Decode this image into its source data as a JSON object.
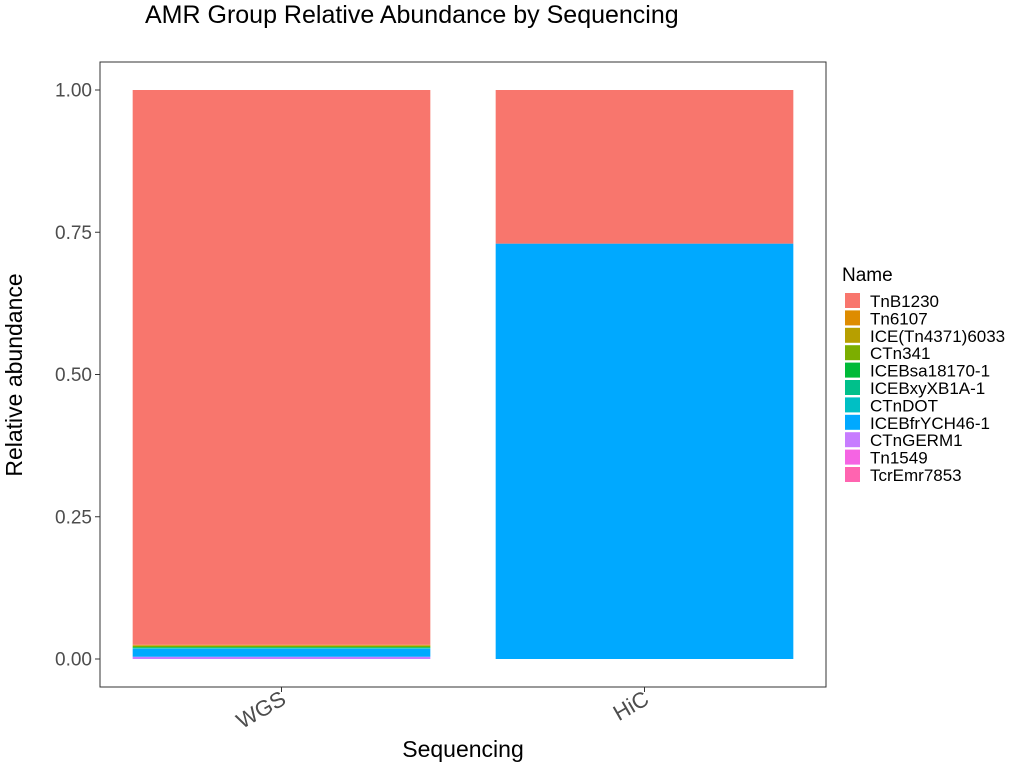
{
  "chart_data": {
    "type": "bar",
    "stacked": true,
    "title": "AMR Group Relative Abundance by Sequencing",
    "xlabel": "Sequencing",
    "ylabel": "Relative abundance",
    "categories": [
      "WGS",
      "HiC"
    ],
    "ylim": [
      0,
      1
    ],
    "yticks": [
      "0.00",
      "0.25",
      "0.50",
      "0.75",
      "1.00"
    ],
    "ytick_values": [
      0,
      0.25,
      0.5,
      0.75,
      1.0
    ],
    "grid": false,
    "legend_position": "right",
    "legend_title": "Name",
    "series": [
      {
        "name": "TnB1230",
        "color": "#F8766D",
        "values": [
          0.975,
          0.27
        ]
      },
      {
        "name": "Tn6107",
        "color": "#DE8C00",
        "values": [
          0.001,
          0.0
        ]
      },
      {
        "name": "ICE(Tn4371)6033",
        "color": "#B79F00",
        "values": [
          0.001,
          0.0
        ]
      },
      {
        "name": "CTn341",
        "color": "#7CAE00",
        "values": [
          0.002,
          0.0
        ]
      },
      {
        "name": "ICEBsa18170-1",
        "color": "#00BA38",
        "values": [
          0.001,
          0.0
        ]
      },
      {
        "name": "ICEBxyXB1A-1",
        "color": "#00C08B",
        "values": [
          0.001,
          0.0
        ]
      },
      {
        "name": "CTnDOT",
        "color": "#00BFC4",
        "values": [
          0.001,
          0.0
        ]
      },
      {
        "name": "ICEBfrYCH46-1",
        "color": "#00A9FF",
        "values": [
          0.014,
          0.73
        ]
      },
      {
        "name": "CTnGERM1",
        "color": "#C77CFF",
        "values": [
          0.004,
          0.0
        ]
      },
      {
        "name": "Tn1549",
        "color": "#F564E3",
        "values": [
          0.0,
          0.0
        ]
      },
      {
        "name": "TcrEmr7853",
        "color": "#FF64B0",
        "values": [
          0.0,
          0.0
        ]
      }
    ]
  }
}
